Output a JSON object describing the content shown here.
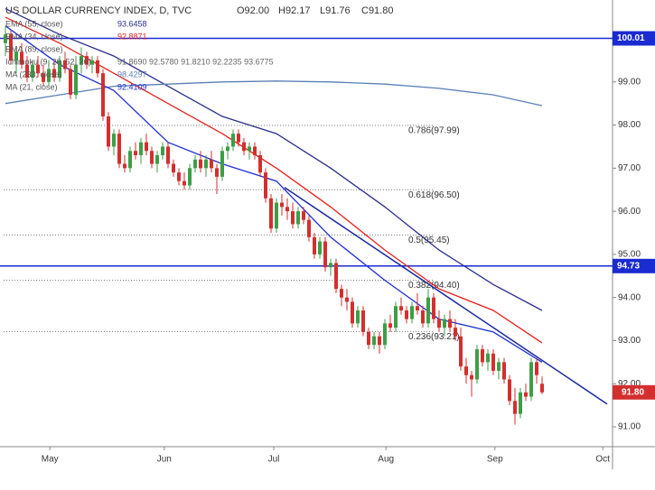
{
  "chart_data": {
    "type": "candlestick",
    "title": "US DOLLAR CURRENCY INDEX, D, TVC",
    "header_ohlc": [
      "O92.00",
      "H92.17",
      "L91.76",
      "C91.80"
    ],
    "up_color": "#3d9e47",
    "down_color": "#d32f2f",
    "open": [
      99.9,
      100.1,
      99.5,
      99.7,
      99.4,
      99.1,
      99.4,
      99.2,
      99.0,
      99.3,
      99.1,
      99.5,
      99.3,
      98.7,
      99.4,
      99.6,
      99.4,
      99.5,
      99.2,
      98.2,
      97.5,
      97.8,
      97.1,
      97.0,
      97.4,
      97.3,
      97.6,
      97.4,
      97.1,
      97.3,
      97.5,
      97.1,
      96.9,
      96.7,
      96.6,
      97.0,
      97.2,
      97.0,
      97.2,
      97.0,
      96.8,
      97.4,
      97.5,
      97.8,
      97.6,
      97.4,
      97.5,
      97.3,
      96.9,
      96.3,
      95.6,
      96.2,
      96.1,
      96.0,
      95.7,
      96.0,
      95.8,
      95.4,
      95.0,
      95.3,
      94.7,
      94.8,
      94.2,
      94.0,
      93.9,
      93.4,
      93.7,
      93.2,
      92.9,
      93.1,
      92.9,
      93.4,
      93.3,
      93.8,
      93.7,
      93.5,
      93.8,
      93.7,
      93.4,
      94.0,
      93.5,
      93.3,
      93.5,
      93.3,
      93.1,
      92.4,
      92.2,
      92.1,
      92.8,
      92.5,
      92.7,
      92.3,
      92.5,
      92.1,
      91.6,
      91.3,
      91.8,
      91.7,
      92.5,
      92.0
    ],
    "high": [
      100.3,
      100.2,
      99.8,
      99.9,
      99.6,
      99.5,
      99.6,
      99.4,
      99.5,
      99.5,
      99.6,
      99.7,
      99.4,
      99.6,
      99.8,
      99.7,
      99.6,
      99.6,
      99.3,
      98.3,
      97.9,
      97.9,
      97.3,
      97.5,
      97.6,
      97.7,
      97.8,
      97.5,
      97.4,
      97.6,
      97.6,
      97.2,
      97.0,
      96.9,
      97.1,
      97.3,
      97.4,
      97.3,
      97.4,
      97.1,
      97.5,
      97.6,
      97.9,
      97.9,
      97.7,
      97.6,
      97.6,
      97.4,
      97.0,
      96.4,
      96.3,
      96.4,
      96.3,
      96.2,
      96.1,
      96.1,
      95.9,
      95.5,
      95.4,
      95.4,
      94.9,
      94.9,
      94.3,
      94.2,
      94.0,
      93.8,
      93.8,
      93.3,
      93.2,
      93.2,
      93.5,
      93.6,
      93.9,
      94.0,
      93.8,
      93.9,
      94.1,
      93.8,
      94.2,
      94.1,
      93.7,
      93.6,
      93.7,
      93.5,
      93.3,
      92.6,
      92.3,
      92.9,
      92.9,
      92.8,
      92.8,
      92.6,
      92.6,
      92.2,
      91.9,
      91.9,
      92.0,
      92.6,
      92.6,
      92.17
    ],
    "low": [
      99.6,
      99.4,
      99.2,
      99.3,
      99.0,
      99.0,
      99.1,
      98.9,
      98.9,
      99.0,
      99.0,
      99.2,
      98.6,
      98.6,
      99.2,
      99.3,
      99.2,
      99.1,
      98.1,
      97.4,
      97.3,
      97.0,
      96.9,
      96.9,
      97.2,
      97.1,
      97.3,
      97.0,
      96.9,
      97.2,
      97.0,
      96.8,
      96.6,
      96.5,
      96.5,
      96.9,
      96.9,
      96.8,
      96.9,
      96.4,
      96.7,
      97.2,
      97.4,
      97.5,
      97.3,
      97.2,
      97.2,
      96.8,
      96.2,
      95.5,
      95.5,
      95.9,
      95.8,
      95.6,
      95.6,
      95.7,
      95.3,
      94.9,
      94.9,
      94.6,
      94.5,
      94.1,
      93.8,
      93.7,
      93.3,
      93.3,
      93.1,
      92.8,
      92.8,
      92.7,
      92.8,
      93.2,
      93.2,
      93.6,
      93.4,
      93.4,
      93.6,
      93.3,
      93.3,
      93.4,
      93.2,
      93.1,
      93.2,
      93.0,
      92.3,
      92.0,
      91.7,
      92.0,
      92.4,
      92.3,
      92.2,
      92.1,
      92.0,
      91.5,
      91.05,
      91.2,
      91.6,
      91.6,
      92.0,
      91.76
    ],
    "close": [
      100.1,
      99.5,
      99.7,
      99.4,
      99.1,
      99.4,
      99.2,
      99.0,
      99.3,
      99.1,
      99.5,
      99.3,
      98.7,
      99.4,
      99.6,
      99.4,
      99.5,
      99.2,
      98.2,
      97.5,
      97.8,
      97.1,
      97.0,
      97.4,
      97.3,
      97.6,
      97.4,
      97.1,
      97.3,
      97.5,
      97.1,
      96.9,
      96.7,
      96.6,
      97.0,
      97.2,
      97.0,
      97.2,
      97.0,
      96.8,
      97.4,
      97.5,
      97.8,
      97.6,
      97.4,
      97.5,
      97.3,
      96.9,
      96.3,
      95.6,
      96.2,
      96.1,
      96.0,
      95.7,
      96.0,
      95.8,
      95.4,
      95.0,
      95.3,
      94.7,
      94.8,
      94.2,
      94.0,
      93.9,
      93.4,
      93.7,
      93.2,
      92.9,
      93.1,
      92.9,
      93.4,
      93.3,
      93.8,
      93.7,
      93.5,
      93.8,
      93.7,
      93.4,
      94.0,
      93.5,
      93.3,
      93.5,
      93.3,
      93.1,
      92.4,
      92.2,
      92.1,
      92.8,
      92.5,
      92.7,
      92.3,
      92.5,
      92.1,
      91.6,
      91.3,
      91.8,
      91.7,
      92.5,
      92.2,
      91.8
    ],
    "overlays": [
      {
        "name": "EMA (55, close)",
        "legend_value": 93.6458,
        "color": "#2a2e8c",
        "x": [
          0,
          10,
          20,
          30,
          40,
          50,
          60,
          70,
          80,
          90,
          99
        ],
        "values": [
          100.7,
          100.1,
          99.6,
          98.9,
          98.2,
          97.8,
          97.0,
          96.1,
          95.1,
          94.3,
          93.7
        ]
      },
      {
        "name": "EMA (34, close)",
        "legend_value": 92.8871,
        "color": "#e8211d",
        "x": [
          0,
          10,
          20,
          30,
          40,
          50,
          60,
          70,
          80,
          90,
          99
        ],
        "values": [
          100.5,
          99.9,
          99.2,
          98.5,
          97.8,
          97.0,
          96.1,
          95.1,
          94.2,
          93.7,
          92.95
        ]
      },
      {
        "name": "MA (233, close)",
        "legend_value": 98.4297,
        "color": "#5b7fb8",
        "x": [
          0,
          10,
          20,
          30,
          40,
          50,
          60,
          70,
          80,
          90,
          99
        ],
        "values": [
          98.5,
          98.7,
          98.9,
          98.95,
          99.0,
          99.02,
          99.0,
          98.95,
          98.85,
          98.7,
          98.45
        ]
      },
      {
        "name": "MA (21, close)",
        "legend_value": 92.4109,
        "color": "#1f2fd6",
        "x": [
          0,
          10,
          20,
          30,
          40,
          50,
          60,
          70,
          80,
          90,
          99
        ],
        "values": [
          100.3,
          99.4,
          98.8,
          97.6,
          97.1,
          96.7,
          95.4,
          94.4,
          93.5,
          93.2,
          92.5
        ]
      }
    ],
    "legend_other": [
      {
        "name": "EMA (89, close)"
      },
      {
        "name": "Ichimoku (9, 26, 52, 26)",
        "readings": "91.8690  92.5780  91.8210  92.2235  93.6775"
      }
    ],
    "hlines": [
      {
        "value": 100.01,
        "color": "#1a2bd1"
      },
      {
        "value": 94.73,
        "color": "#1a2bd1"
      }
    ],
    "fib_levels": [
      {
        "value": 97.99,
        "label": "0.786(97.99)"
      },
      {
        "value": 96.5,
        "label": "0.618(96.50)"
      },
      {
        "value": 95.45,
        "label": "0.5(95.45)"
      },
      {
        "value": 94.4,
        "label": "0.382(94.40)"
      },
      {
        "value": 93.21,
        "label": "0.236(93.21)"
      }
    ],
    "trendline": {
      "x": [
        51.5,
        111
      ],
      "values": [
        96.55,
        91.53
      ],
      "color": "#1b2a9e"
    },
    "last_price": {
      "value": 91.8,
      "label": "91.80"
    },
    "xlim": [
      -1,
      112
    ],
    "xticks": [
      {
        "value": 8.2,
        "label": "May"
      },
      {
        "value": 29.3,
        "label": "Jun"
      },
      {
        "value": 49.5,
        "label": "Jul"
      },
      {
        "value": 70.2,
        "label": "Aug"
      },
      {
        "value": 90.3,
        "label": "Sep"
      },
      {
        "value": 110.2,
        "label": "Oct"
      }
    ],
    "ylim": [
      90.54,
      100.9
    ],
    "yticks": [
      {
        "value": 99,
        "label": "99.00"
      },
      {
        "value": 98,
        "label": "98.00"
      },
      {
        "value": 97,
        "label": "97.00"
      },
      {
        "value": 96,
        "label": "96.00"
      },
      {
        "value": 95,
        "label": "95.00"
      },
      {
        "value": 94,
        "label": "94.00"
      },
      {
        "value": 93,
        "label": "93.00"
      },
      {
        "value": 92,
        "label": "92.00"
      },
      {
        "value": 91,
        "label": "91.00"
      }
    ]
  }
}
